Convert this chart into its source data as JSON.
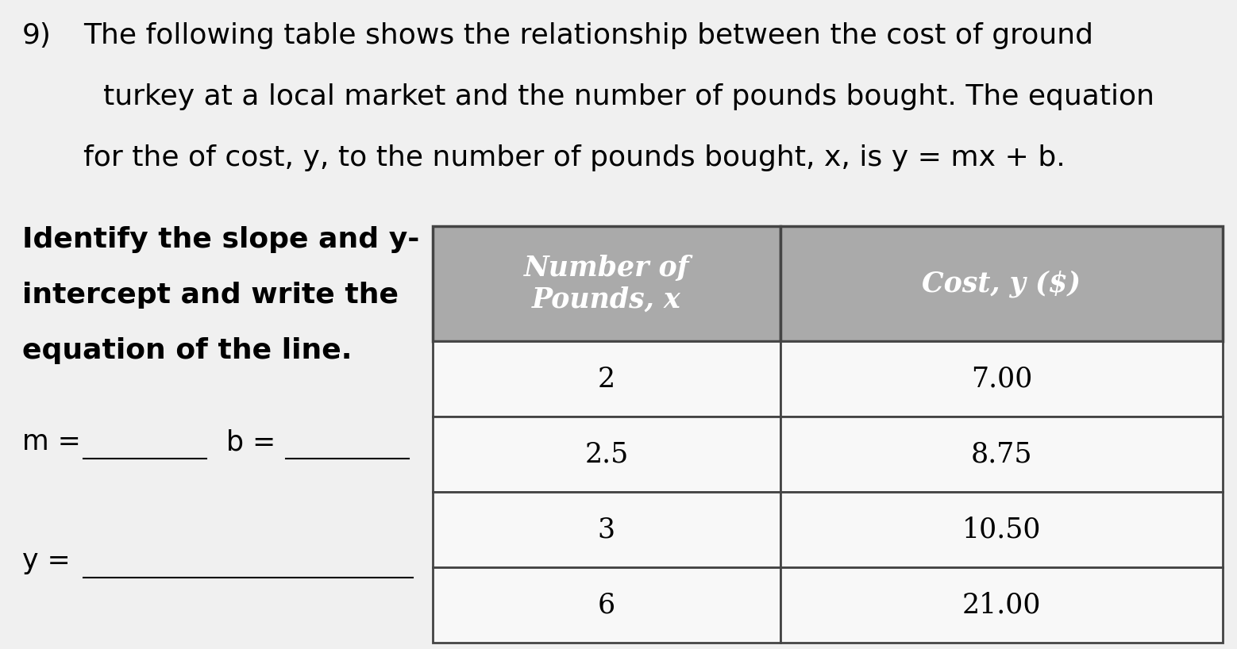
{
  "background_color": "#f0f0f0",
  "problem_number": "9)",
  "paragraph_lines": [
    "The following table shows the relationship between the cost of ground",
    "turkey at a local market and the number of pounds bought. The equation",
    "for the of cost, y, to the number of pounds bought, x, is y = mx + b."
  ],
  "left_label_lines": [
    "Identify the slope and y-",
    "intercept and write the",
    "equation of the line."
  ],
  "table": {
    "header": [
      "Number of\nPounds, x",
      "Cost, y ($)"
    ],
    "rows": [
      [
        "2",
        "7.00"
      ],
      [
        "2.5",
        "8.75"
      ],
      [
        "3",
        "10.50"
      ],
      [
        "6",
        "21.00"
      ]
    ],
    "header_bg": "#aaaaaa",
    "row_bg": "#f8f8f8",
    "border_color": "#444444",
    "header_text_color": "#ffffff"
  },
  "font_size_paragraph": 26,
  "font_size_problem_num": 26,
  "font_size_left_label": 26,
  "font_size_answer": 25,
  "font_size_table_header": 25,
  "font_size_table_data": 25
}
